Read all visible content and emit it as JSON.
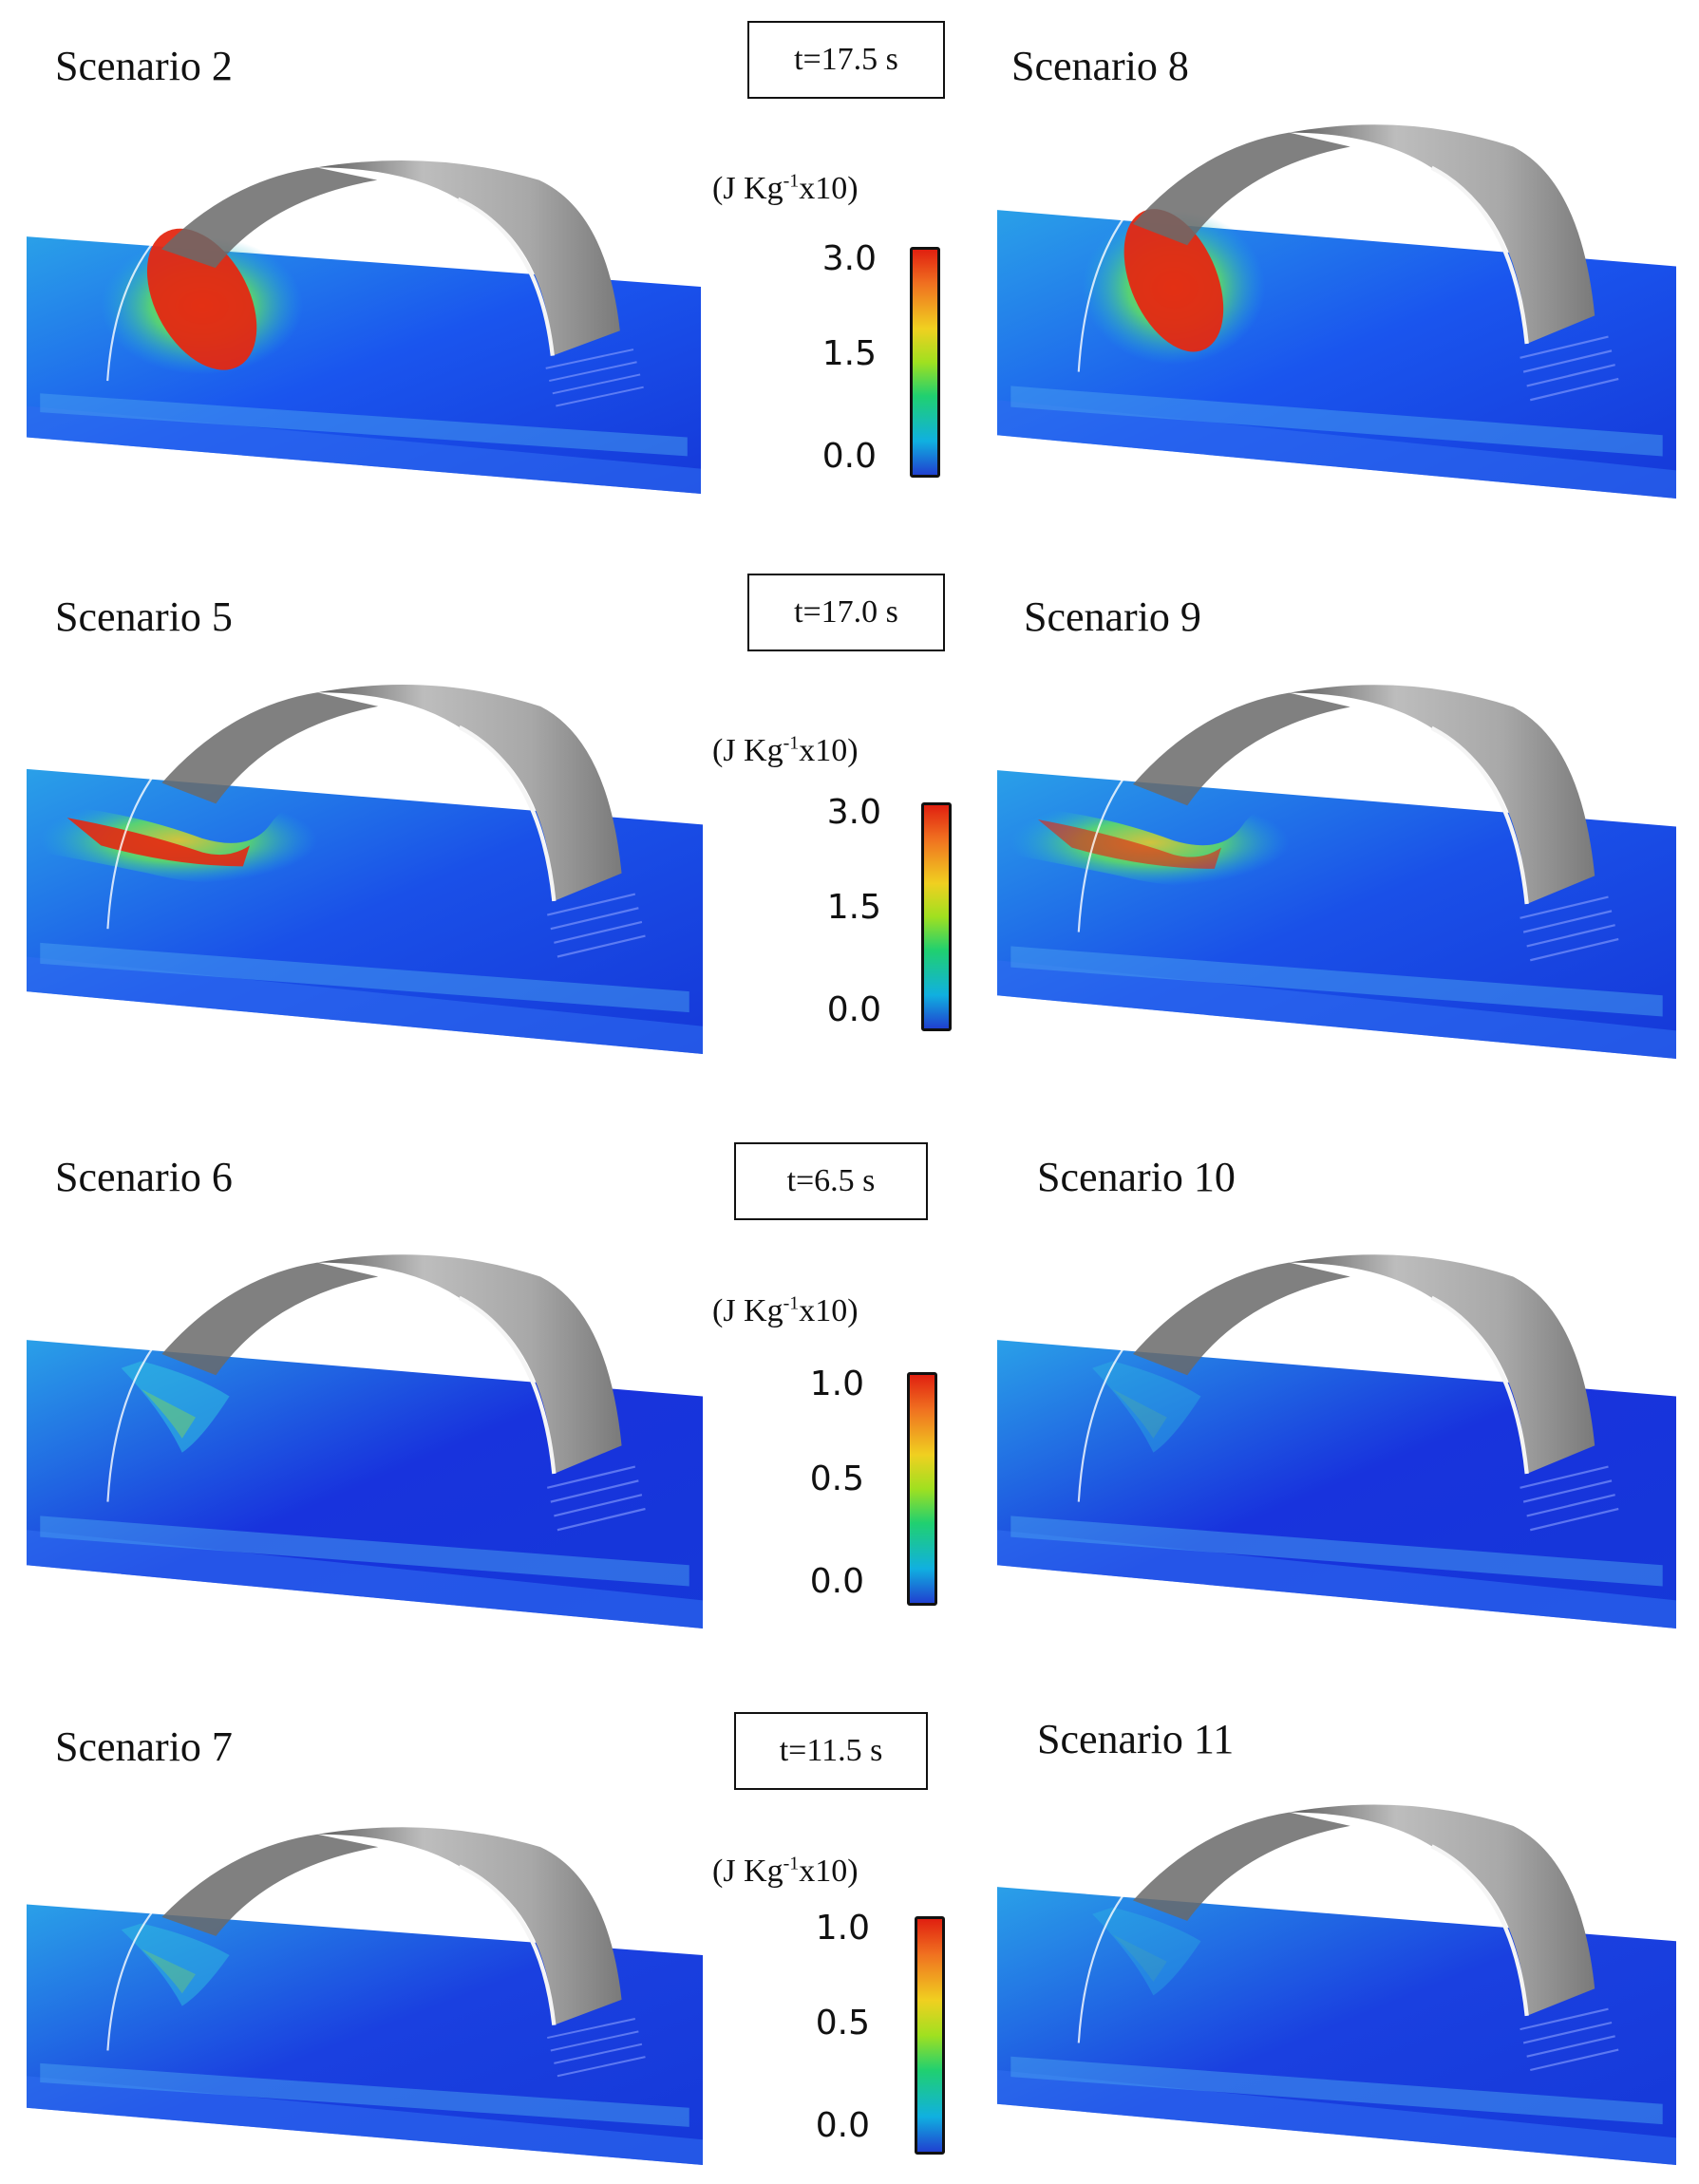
{
  "rows": [
    {
      "left_label": "Scenario 2",
      "right_label": "Scenario 8",
      "time": "t=17.5 s",
      "unit_main": "(J Kg",
      "unit_sup": "-1",
      "unit_tail": "x10)",
      "scale": {
        "max": "3.0",
        "mid": "1.5",
        "min": "0.0"
      }
    },
    {
      "left_label": "Scenario 5",
      "right_label": "Scenario 9",
      "time": "t=17.0 s",
      "unit_main": "(J Kg",
      "unit_sup": "-1",
      "unit_tail": "x10)",
      "scale": {
        "max": "3.0",
        "mid": "1.5",
        "min": "0.0"
      }
    },
    {
      "left_label": "Scenario 6",
      "right_label": "Scenario 10",
      "time": "t=6.5 s",
      "unit_main": "(J Kg",
      "unit_sup": "-1",
      "unit_tail": "x10)",
      "scale": {
        "max": "1.0",
        "mid": "0.5",
        "min": "0.0"
      }
    },
    {
      "left_label": "Scenario 7",
      "right_label": "Scenario 11",
      "time": "t=11.5 s",
      "unit_main": "(J Kg",
      "unit_sup": "-1",
      "unit_tail": "x10)",
      "scale": {
        "max": "1.0",
        "mid": "0.5",
        "min": "0.0"
      }
    }
  ],
  "colorbar_colors": [
    "#e02010",
    "#f0d020",
    "#20d070",
    "#10b0e0",
    "#2040d0"
  ]
}
